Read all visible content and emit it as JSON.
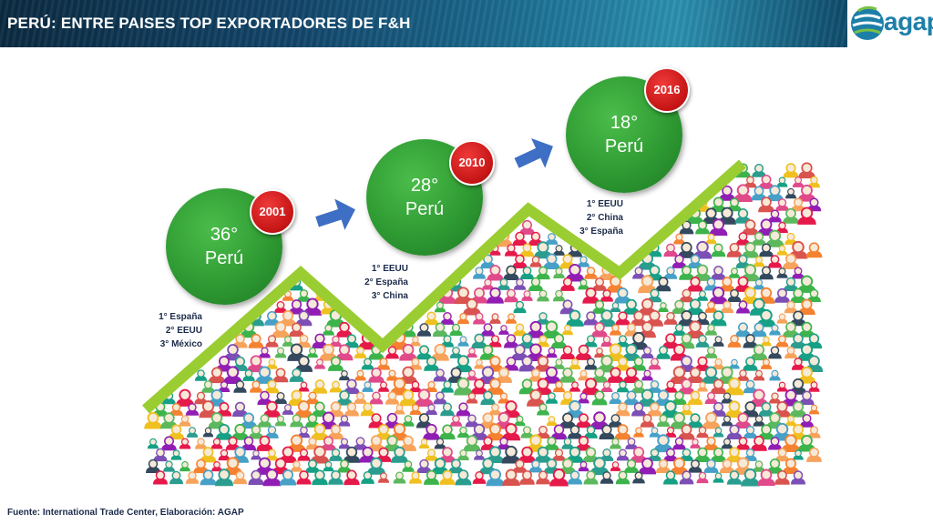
{
  "header": {
    "title": "PERÚ: ENTRE PAISES TOP EXPORTADORES DE F&H",
    "logo_text": "agap"
  },
  "milestones": [
    {
      "year": "2001",
      "rank": "36°",
      "country": "Perú",
      "top": [
        "1° España",
        "2° EEUU",
        "3° México"
      ]
    },
    {
      "year": "2010",
      "rank": "28°",
      "country": "Perú",
      "top": [
        "1° EEUU",
        "2° España",
        "3° China"
      ]
    },
    {
      "year": "2016",
      "rank": "18°",
      "country": "Perú",
      "top": [
        "1° EEUU",
        "2° China",
        "3° España"
      ]
    }
  ],
  "footer": {
    "source": "Fuente:  International Trade Center, Elaboración: AGAP"
  },
  "colors": {
    "circle_green": "#2e9a32",
    "badge_red": "#c41414",
    "trend_line": "#9acd32",
    "arrow_blue": "#3e6fc4"
  }
}
